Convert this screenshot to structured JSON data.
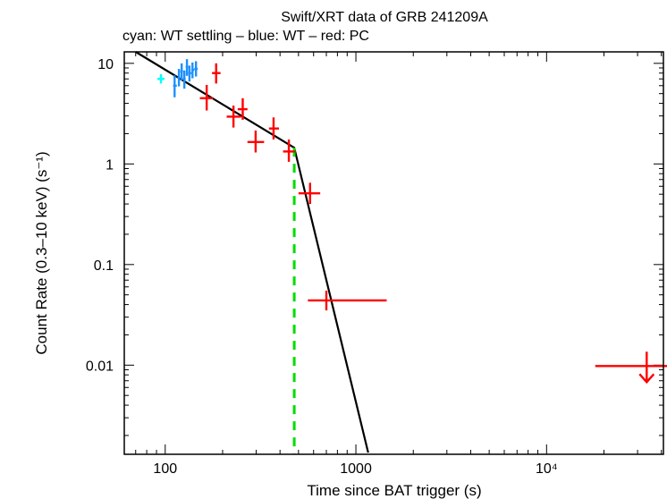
{
  "chart_data": {
    "type": "scatter",
    "title": "Swift/XRT data of GRB 241209A",
    "subtitle": "cyan: WT settling – blue: WT – red: PC",
    "xlabel": "Time since BAT trigger (s)",
    "ylabel": "Count Rate (0.3–10 keV) (s⁻¹)",
    "xscale": "log",
    "yscale": "log",
    "xlim": [
      61,
      41000
    ],
    "ylim": [
      0.0013,
      13
    ],
    "x_tick_labels": [
      {
        "value": 100,
        "label": "100"
      },
      {
        "value": 1000,
        "label": "1000"
      },
      {
        "value": 10000,
        "label": "10⁴"
      }
    ],
    "y_tick_labels": [
      {
        "value": 10,
        "label": "10"
      },
      {
        "value": 1,
        "label": "1"
      },
      {
        "value": 0.1,
        "label": "0.1"
      },
      {
        "value": 0.01,
        "label": "0.01"
      }
    ],
    "colors": {
      "wt_settling": "#00ffff",
      "wt": "#1e90ff",
      "pc": "#ff0000",
      "model": "#000000",
      "break": "#00dd00"
    },
    "series": [
      {
        "name": "WT settling",
        "color_key": "wt_settling",
        "points": [
          {
            "x": 95,
            "xlo": 91,
            "xhi": 99,
            "y": 7.0,
            "ylo": 6.3,
            "yhi": 7.8
          }
        ]
      },
      {
        "name": "WT",
        "color_key": "wt",
        "points": [
          {
            "x": 112,
            "xlo": 110,
            "xhi": 115,
            "y": 6.0,
            "ylo": 4.6,
            "yhi": 7.6
          },
          {
            "x": 118,
            "xlo": 116,
            "xhi": 120,
            "y": 7.2,
            "ylo": 5.9,
            "yhi": 8.8
          },
          {
            "x": 122,
            "xlo": 120,
            "xhi": 124,
            "y": 8.3,
            "ylo": 6.8,
            "yhi": 10.0
          },
          {
            "x": 126,
            "xlo": 124,
            "xhi": 128,
            "y": 7.0,
            "ylo": 5.6,
            "yhi": 8.5
          },
          {
            "x": 130,
            "xlo": 128,
            "xhi": 132,
            "y": 9.2,
            "ylo": 7.5,
            "yhi": 11.0
          },
          {
            "x": 134,
            "xlo": 132,
            "xhi": 137,
            "y": 8.0,
            "ylo": 6.6,
            "yhi": 9.5
          },
          {
            "x": 139,
            "xlo": 137,
            "xhi": 142,
            "y": 8.6,
            "ylo": 7.1,
            "yhi": 10.2
          },
          {
            "x": 145,
            "xlo": 142,
            "xhi": 148,
            "y": 8.8,
            "ylo": 7.4,
            "yhi": 10.5
          }
        ]
      },
      {
        "name": "PC",
        "color_key": "pc",
        "points": [
          {
            "x": 185,
            "xlo": 176,
            "xhi": 195,
            "y": 8.0,
            "ylo": 6.3,
            "yhi": 10.0
          },
          {
            "x": 165,
            "xlo": 152,
            "xhi": 178,
            "y": 4.5,
            "ylo": 3.4,
            "yhi": 6.1
          },
          {
            "x": 228,
            "xlo": 210,
            "xhi": 250,
            "y": 2.95,
            "ylo": 2.3,
            "yhi": 3.8
          },
          {
            "x": 255,
            "xlo": 240,
            "xhi": 270,
            "y": 3.5,
            "ylo": 2.75,
            "yhi": 4.5
          },
          {
            "x": 298,
            "xlo": 270,
            "xhi": 330,
            "y": 1.65,
            "ylo": 1.3,
            "yhi": 2.15
          },
          {
            "x": 370,
            "xlo": 350,
            "xhi": 395,
            "y": 2.25,
            "ylo": 1.75,
            "yhi": 2.9
          },
          {
            "x": 445,
            "xlo": 415,
            "xhi": 480,
            "y": 1.33,
            "ylo": 1.05,
            "yhi": 1.75
          },
          {
            "x": 575,
            "xlo": 500,
            "xhi": 650,
            "y": 0.51,
            "ylo": 0.4,
            "yhi": 0.65
          },
          {
            "x": 700,
            "xlo": 560,
            "xhi": 1450,
            "y": 0.044,
            "ylo": 0.035,
            "yhi": 0.055
          }
        ]
      },
      {
        "name": "PC upper limit",
        "color_key": "pc",
        "upper_limit": true,
        "points": [
          {
            "x": 33500,
            "xlo": 18000,
            "xhi": 47000,
            "y": 0.0098
          }
        ]
      }
    ],
    "model": {
      "type": "broken power law",
      "points": [
        {
          "x": 70,
          "y": 13.0
        },
        {
          "x": 475,
          "y": 1.45
        },
        {
          "x": 1160,
          "y": 0.00135
        }
      ]
    },
    "break_time": 475
  }
}
